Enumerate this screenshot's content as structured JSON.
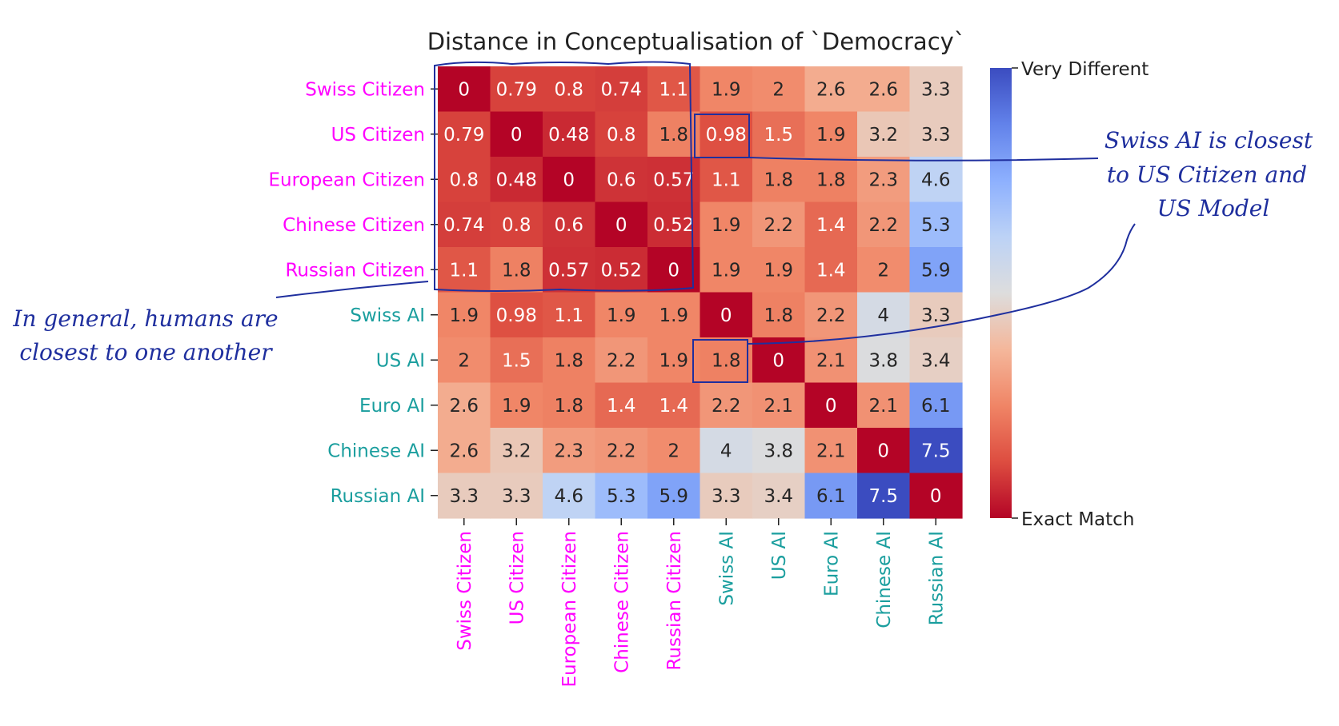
{
  "chart_data": {
    "type": "heatmap",
    "title": "Distance in Conceptualisation of `Democracy`",
    "row_labels": [
      "Swiss Citizen",
      "US Citizen",
      "European Citizen",
      "Chinese Citizen",
      "Russian Citizen",
      "Swiss AI",
      "US AI",
      "Euro AI",
      "Chinese AI",
      "Russian AI"
    ],
    "col_labels": [
      "Swiss Citizen",
      "US Citizen",
      "European Citizen",
      "Chinese Citizen",
      "Russian Citizen",
      "Swiss AI",
      "US AI",
      "Euro AI",
      "Chinese AI",
      "Russian AI"
    ],
    "label_groups": [
      "citizen",
      "citizen",
      "citizen",
      "citizen",
      "citizen",
      "ai",
      "ai",
      "ai",
      "ai",
      "ai"
    ],
    "values": [
      [
        0,
        0.79,
        0.8,
        0.74,
        1.1,
        1.9,
        2,
        2.6,
        2.6,
        3.3
      ],
      [
        0.79,
        0,
        0.48,
        0.8,
        1.8,
        0.98,
        1.5,
        1.9,
        3.2,
        3.3
      ],
      [
        0.8,
        0.48,
        0,
        0.6,
        0.57,
        1.1,
        1.8,
        1.8,
        2.3,
        4.6
      ],
      [
        0.74,
        0.8,
        0.6,
        0,
        0.52,
        1.9,
        2.2,
        1.4,
        2.2,
        5.3
      ],
      [
        1.1,
        1.8,
        0.57,
        0.52,
        0,
        1.9,
        1.9,
        1.4,
        2,
        5.9
      ],
      [
        1.9,
        0.98,
        1.1,
        1.9,
        1.9,
        0,
        1.8,
        2.2,
        4,
        3.3
      ],
      [
        2,
        1.5,
        1.8,
        2.2,
        1.9,
        1.8,
        0,
        2.1,
        3.8,
        3.4
      ],
      [
        2.6,
        1.9,
        1.8,
        1.4,
        1.4,
        2.2,
        2.1,
        0,
        2.1,
        6.1
      ],
      [
        2.6,
        3.2,
        2.3,
        2.2,
        2,
        4,
        3.8,
        2.1,
        0,
        7.5
      ],
      [
        3.3,
        3.3,
        4.6,
        5.3,
        5.9,
        3.3,
        3.4,
        6.1,
        7.5,
        0
      ]
    ],
    "value_range": [
      0,
      7.5
    ],
    "colormap": "coolwarm_reversed",
    "colorbar": {
      "top_label": "Very Different",
      "bottom_label": "Exact Match"
    },
    "label_colors": {
      "citizen": "#ff00ff",
      "ai": "#1a9e9e"
    },
    "annotations": [
      {
        "text_lines": [
          "Swiss AI is closest",
          "to US Citizen and",
          "US Model"
        ]
      },
      {
        "text_lines": [
          "In general, humans are",
          "closest to one another"
        ]
      }
    ],
    "annotation_color": "#1f2f9e"
  }
}
